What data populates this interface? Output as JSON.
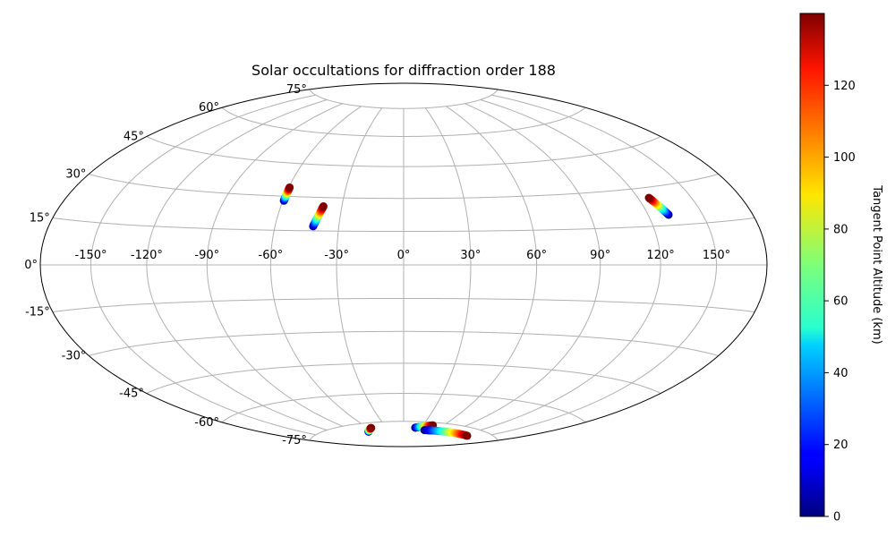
{
  "chart_data": {
    "type": "scatter",
    "projection": "hammer",
    "title": "Solar occultations for diffraction order 188",
    "lon_ticks": [
      "-150°",
      "-120°",
      "-90°",
      "-60°",
      "-30°",
      "0°",
      "30°",
      "60°",
      "90°",
      "120°",
      "150°"
    ],
    "lat_ticks": [
      "75°",
      "60°",
      "45°",
      "30°",
      "15°",
      "0°",
      "-15°",
      "-30°",
      "-45°",
      "-60°",
      "-75°"
    ],
    "lon_tick_values": [
      -150,
      -120,
      -90,
      -60,
      -30,
      0,
      30,
      60,
      90,
      120,
      150
    ],
    "lat_tick_values": [
      75,
      60,
      45,
      30,
      15,
      0,
      -15,
      -30,
      -45,
      -60,
      -75
    ],
    "grid": true,
    "colorbar": {
      "label": "Tangent Point Altitude (km)",
      "colormap": "jet",
      "range": [
        0,
        140
      ],
      "ticks": [
        "0",
        "20",
        "40",
        "60",
        "80",
        "100",
        "120"
      ],
      "tick_values": [
        0,
        20,
        40,
        60,
        80,
        100,
        120
      ]
    },
    "occultations": [
      {
        "lon_start": -59.5,
        "lat_start": 28.0,
        "lon_end": -59.5,
        "lat_end": 34.0,
        "alt_start": 0,
        "alt_end": 140
      },
      {
        "lon_start": -42.0,
        "lat_start": 17.0,
        "lon_end": -39.0,
        "lat_end": 26.0,
        "alt_start": 0,
        "alt_end": 140
      },
      {
        "lon_start": 131.0,
        "lat_start": 19.0,
        "lon_end": 126.0,
        "lat_end": 26.0,
        "alt_start": 0,
        "alt_end": 140
      },
      {
        "lon_start": -70.0,
        "lat_start": -79.6,
        "lon_end": -55.0,
        "lat_end": -77.8,
        "alt_start": 0,
        "alt_end": 140
      },
      {
        "lon_start": 20.0,
        "lat_start": -78.5,
        "lon_end": 45.0,
        "lat_end": -76.6,
        "alt_start": 0,
        "alt_end": 140
      },
      {
        "lon_start": 40.0,
        "lat_start": -79.6,
        "lon_end": 130.0,
        "lat_end": -78.4,
        "alt_start": 0,
        "alt_end": 140
      }
    ]
  }
}
